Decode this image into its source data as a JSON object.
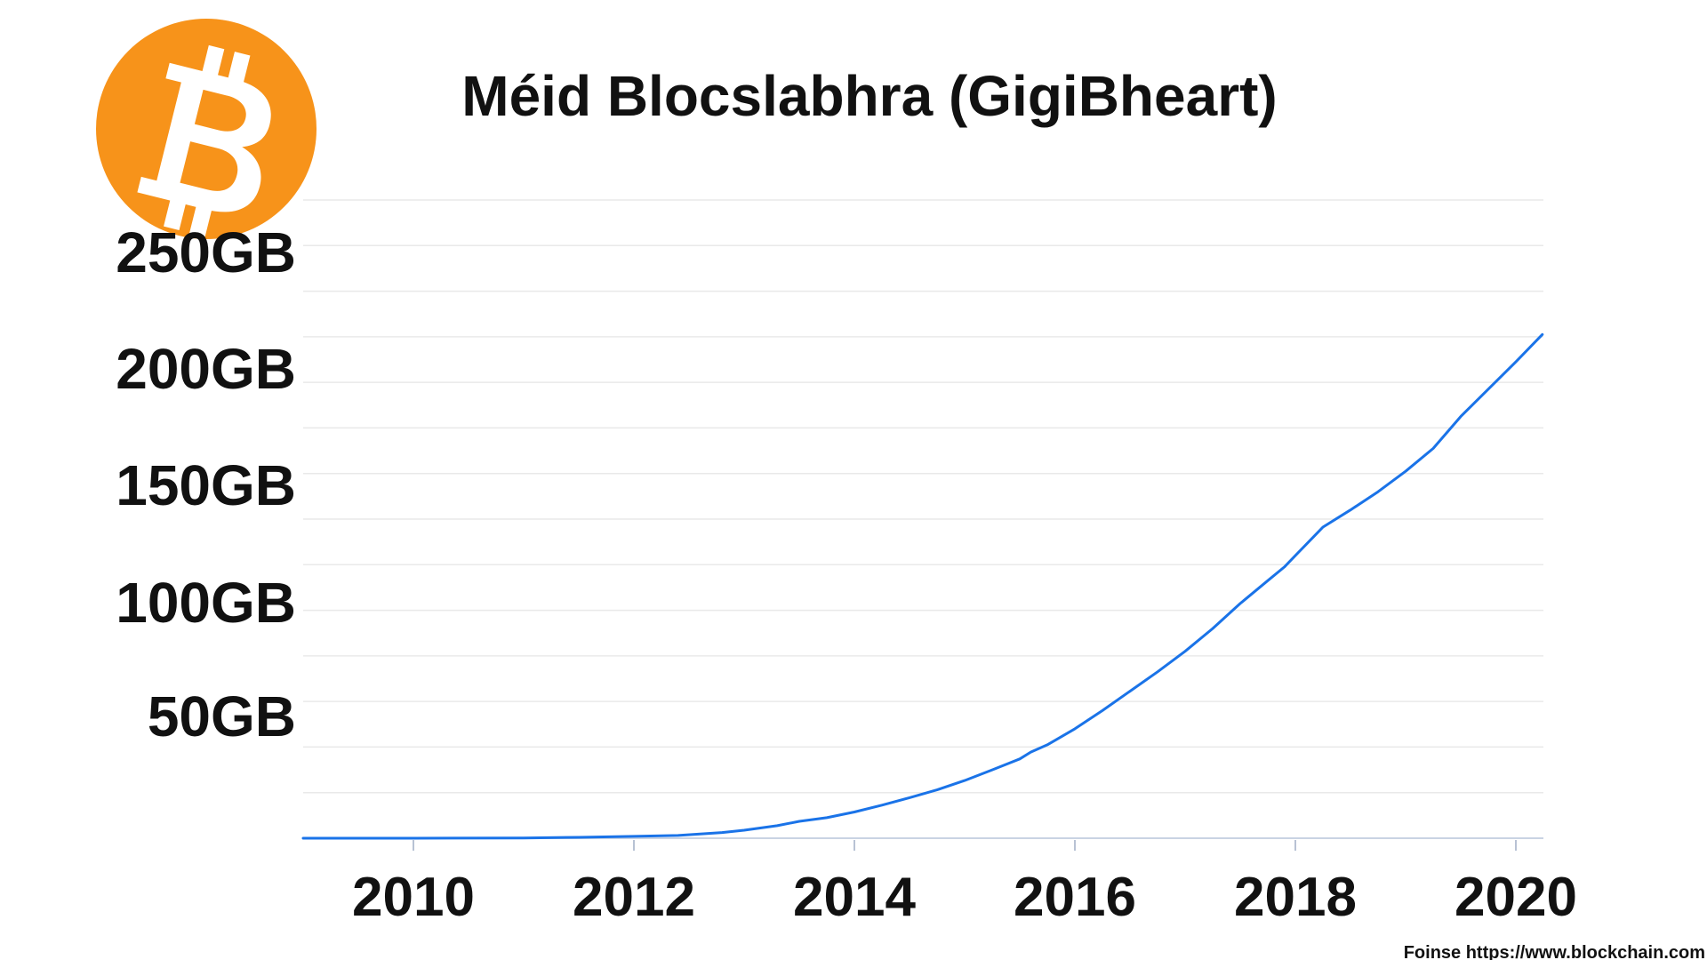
{
  "logo": {
    "icon": "bitcoin-logo-icon",
    "background_color": "#F7931A",
    "glyph_color": "#FFFFFF"
  },
  "source_note": "Foinse https://www.blockchain.com",
  "chart_data": {
    "type": "line",
    "title": "Méid Blocslabhra (GigiBheart)",
    "xlabel": "",
    "ylabel": "",
    "xlim": [
      2009.0,
      2020.25
    ],
    "ylim": [
      0,
      280
    ],
    "grid": true,
    "legend": "none",
    "x_ticks": [
      {
        "value": 2010,
        "label": "2010"
      },
      {
        "value": 2012,
        "label": "2012"
      },
      {
        "value": 2014,
        "label": "2014"
      },
      {
        "value": 2016,
        "label": "2016"
      },
      {
        "value": 2018,
        "label": "2018"
      },
      {
        "value": 2020,
        "label": "2020"
      }
    ],
    "y_ticks": [
      {
        "value": 50,
        "label": "50GB"
      },
      {
        "value": 100,
        "label": "100GB"
      },
      {
        "value": 150,
        "label": "150GB"
      },
      {
        "value": 200,
        "label": "200GB"
      },
      {
        "value": 250,
        "label": "250GB"
      }
    ],
    "grid_values": [
      20,
      40,
      60,
      80,
      100,
      120,
      140,
      160,
      180,
      200,
      220,
      240,
      260,
      280
    ],
    "series": [
      {
        "color": "#1A73E8",
        "points": [
          [
            2009.0,
            0.0
          ],
          [
            2010.0,
            0.0
          ],
          [
            2011.0,
            0.1
          ],
          [
            2011.5,
            0.4
          ],
          [
            2012.0,
            0.8
          ],
          [
            2012.4,
            1.2
          ],
          [
            2012.8,
            2.5
          ],
          [
            2013.0,
            3.5
          ],
          [
            2013.3,
            5.5
          ],
          [
            2013.5,
            7.4
          ],
          [
            2013.75,
            9.0
          ],
          [
            2014.0,
            11.5
          ],
          [
            2014.25,
            14.5
          ],
          [
            2014.5,
            17.8
          ],
          [
            2014.75,
            21.2
          ],
          [
            2015.0,
            25.3
          ],
          [
            2015.25,
            30.0
          ],
          [
            2015.5,
            34.8
          ],
          [
            2015.6,
            37.8
          ],
          [
            2015.75,
            41.0
          ],
          [
            2016.0,
            48.0
          ],
          [
            2016.25,
            56.0
          ],
          [
            2016.5,
            64.5
          ],
          [
            2016.75,
            73.0
          ],
          [
            2017.0,
            82.0
          ],
          [
            2017.25,
            92.0
          ],
          [
            2017.5,
            103.0
          ],
          [
            2017.75,
            113.0
          ],
          [
            2017.9,
            119.0
          ],
          [
            2018.0,
            124.0
          ],
          [
            2018.2,
            134.0
          ],
          [
            2018.25,
            136.5
          ],
          [
            2018.5,
            144.0
          ],
          [
            2018.75,
            152.0
          ],
          [
            2019.0,
            161.0
          ],
          [
            2019.25,
            171.0
          ],
          [
            2019.5,
            185.0
          ],
          [
            2019.75,
            197.0
          ],
          [
            2020.0,
            209.0
          ],
          [
            2020.24,
            221.0
          ]
        ]
      }
    ]
  }
}
